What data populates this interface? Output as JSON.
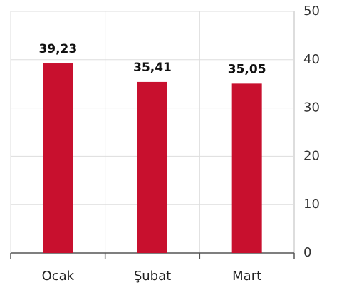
{
  "chart_data": {
    "type": "bar",
    "categories": [
      "Ocak",
      "Şubat",
      "Mart"
    ],
    "values": [
      39.23,
      35.41,
      35.05
    ],
    "value_labels": [
      "39,23",
      "35,41",
      "35,05"
    ],
    "color": "#c8102e",
    "ylim": [
      0,
      50
    ],
    "yticks": [
      0,
      10,
      20,
      30,
      40,
      50
    ],
    "grid": true
  }
}
